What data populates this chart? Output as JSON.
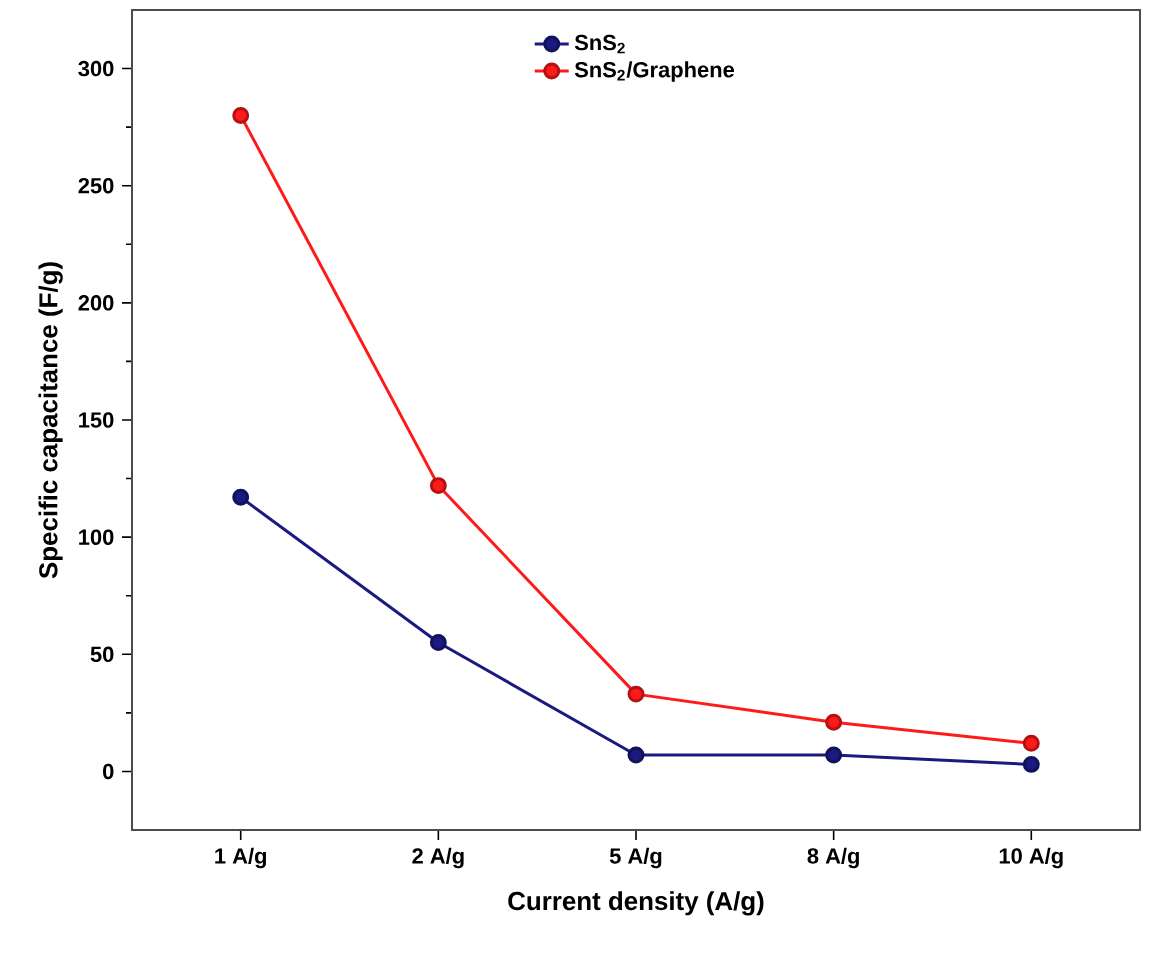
{
  "chart_data": {
    "type": "line",
    "xlabel": "Current density (A/g)",
    "ylabel": "Specific capacitance (F/g)",
    "categories": [
      "1 A/g",
      "2 A/g",
      "5 A/g",
      "8 A/g",
      "10 A/g"
    ],
    "series": [
      {
        "name": "SnS$_{2}$",
        "color": "#1a1a80",
        "values": [
          117,
          55,
          7,
          7,
          3
        ]
      },
      {
        "name": "SnS$_{2}$/Graphene",
        "color": "#ff1a1a",
        "values": [
          280,
          122,
          33,
          21,
          12
        ]
      }
    ],
    "ylim": [
      -25,
      325
    ],
    "yticks": [
      0,
      50,
      100,
      150,
      200,
      250,
      300
    ],
    "marker": "circle",
    "line_style": "solid",
    "legend": "top",
    "grid": false
  }
}
